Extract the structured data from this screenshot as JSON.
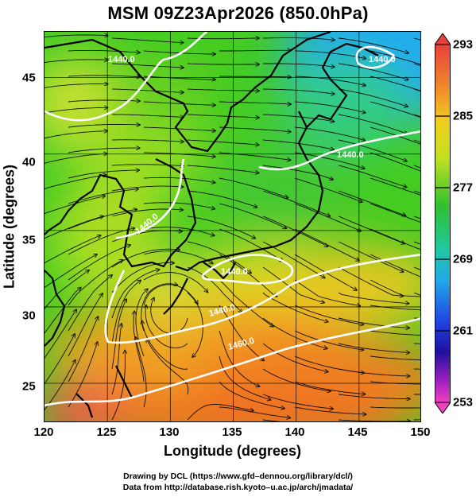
{
  "title": "MSM 09Z23Apr2026 (850.0hPa)",
  "x_axis": {
    "label": "Longitude (degrees)",
    "range": [
      120,
      150
    ],
    "ticks": [
      "120",
      "125",
      "130",
      "135",
      "140",
      "145",
      "150"
    ]
  },
  "y_axis": {
    "label": "Latitude  (degrees)",
    "range": [
      22.4,
      48.0
    ],
    "ticks": [
      "25",
      "30",
      "35",
      "40",
      "45"
    ]
  },
  "colorbar": {
    "range": [
      253,
      293
    ],
    "ticks": [
      "293",
      "285",
      "277",
      "269",
      "261",
      "253"
    ]
  },
  "contour_labels": [
    "1440.0",
    "1440.0",
    "1440.0",
    "1440.0",
    "1440.0",
    "1440.0",
    "1460.0"
  ],
  "credits": {
    "line1": "Drawing by DCL (https://www.gfd–dennou.org/library/dcl/)",
    "line2": "Data from http://database.rish.kyoto–u.ac.jp/arch/jmadata/"
  }
}
